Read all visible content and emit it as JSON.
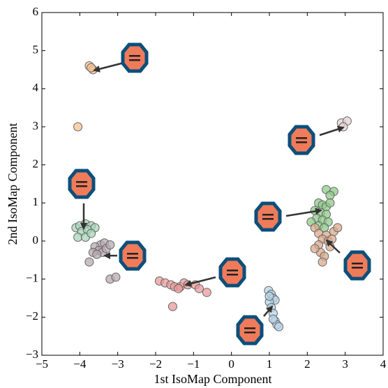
{
  "chart_data": {
    "type": "scatter",
    "x_label": "1st IsoMap Component",
    "y_label": "2nd IsoMap Component",
    "xlim": [
      -5,
      4
    ],
    "ylim": [
      -3,
      6
    ],
    "xticks": [
      {
        "value": -5,
        "label": "−5"
      },
      {
        "value": -4,
        "label": "−4"
      },
      {
        "value": -3,
        "label": "−3"
      },
      {
        "value": -2,
        "label": "−2"
      },
      {
        "value": -1,
        "label": "−1"
      },
      0,
      1,
      2,
      3,
      4
    ],
    "yticks": [
      {
        "value": -3,
        "label": "−3"
      },
      {
        "value": -2,
        "label": "−2"
      },
      {
        "value": -1,
        "label": "−1"
      },
      0,
      1,
      2,
      3,
      4,
      5,
      6
    ],
    "grid": false,
    "series": [
      {
        "color": "#f4c28f",
        "x": [
          -3.75,
          -3.65,
          -3.7,
          -4.05
        ],
        "values": [
          4.6,
          4.5,
          4.55,
          3.0
        ]
      },
      {
        "color": "#e6d0d6",
        "x": [
          2.9,
          3.05,
          2.95
        ],
        "values": [
          3.1,
          3.15,
          3.0
        ]
      },
      {
        "color": "#8fc98a",
        "x": [
          2.5,
          2.7,
          2.6,
          2.3,
          2.4,
          2.5,
          2.2,
          2.35,
          2.5,
          2.25,
          2.4,
          2.55,
          2.1,
          2.3,
          2.45,
          2.6
        ],
        "values": [
          1.35,
          1.3,
          1.2,
          1.0,
          0.95,
          0.9,
          0.8,
          0.75,
          0.7,
          0.6,
          0.55,
          0.5,
          0.5,
          0.4,
          0.35,
          1.0
        ]
      },
      {
        "color": "#d9a98c",
        "x": [
          2.2,
          2.3,
          2.5,
          2.7,
          2.8,
          2.4,
          2.55,
          2.3,
          2.6,
          2.35,
          2.45,
          2.4,
          2.2,
          2.65
        ],
        "values": [
          0.35,
          0.2,
          0.15,
          0.25,
          0.35,
          0.05,
          0.0,
          -0.1,
          -0.15,
          -0.3,
          -0.4,
          -0.55,
          -0.2,
          0.05
        ]
      },
      {
        "color": "#a8d4b8",
        "x": [
          -4.1,
          -4.0,
          -3.85,
          -3.7,
          -3.6,
          -3.95,
          -3.8,
          -4.05,
          -3.85,
          -3.7
        ],
        "values": [
          0.35,
          0.4,
          0.45,
          0.4,
          0.35,
          0.25,
          0.3,
          0.1,
          0.1,
          0.2
        ]
      },
      {
        "color": "#b8aab0",
        "x": [
          -3.45,
          -3.35,
          -3.6,
          -3.5,
          -3.4,
          -3.3,
          -3.65,
          -3.55,
          -3.2,
          -3.75,
          -3.2,
          -3.05
        ],
        "values": [
          -0.1,
          -0.05,
          -0.15,
          -0.25,
          -0.3,
          -0.2,
          -0.3,
          -0.35,
          -0.1,
          -0.55,
          -1.0,
          -0.95
        ]
      },
      {
        "color": "#eb9a9a",
        "x": [
          -1.9,
          -1.75,
          -1.6,
          -1.5,
          -1.35,
          -1.25,
          -1.15,
          -0.95,
          -0.85,
          -0.65,
          -1.55,
          -1.4
        ],
        "values": [
          -1.05,
          -1.1,
          -1.15,
          -1.2,
          -1.2,
          -1.1,
          -1.15,
          -1.15,
          -1.25,
          -1.35,
          -1.72,
          -1.25
        ]
      },
      {
        "color": "#b5d4e8",
        "x": [
          0.98,
          1.05,
          1.1,
          1.15,
          1.0,
          1.05,
          1.1,
          1.15,
          1.2,
          1.25,
          1.1,
          1.0
        ],
        "values": [
          -1.3,
          -1.4,
          -1.5,
          -1.55,
          -1.6,
          -1.75,
          -1.9,
          -2.1,
          -2.2,
          -2.25,
          -2.05,
          -1.45
        ]
      }
    ]
  }
}
